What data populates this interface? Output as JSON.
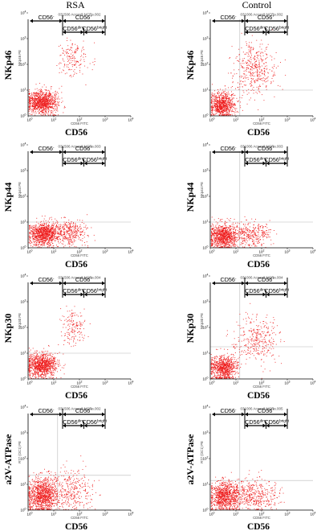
{
  "figure": {
    "columns": [
      "RSA",
      "Control"
    ],
    "x_marker": "CD56",
    "x_channel": "CD56 FITC",
    "gate_labels": {
      "neg": "CD56",
      "neg_sup": "-",
      "pos": "CD56",
      "pos_sup": "+",
      "dim": "CD56",
      "dim_sup": "dim",
      "bright": "CD56",
      "bright_sup": "bright"
    },
    "decades": [
      "0",
      "1",
      "2",
      "3",
      "4"
    ],
    "colors": {
      "dots": "#ee1c1c",
      "axis": "#000000",
      "quadrant": "#b8b8b8",
      "panel_bg": "#ffffff"
    }
  },
  "chart_data": [
    {
      "type": "scatter",
      "column": "RSA",
      "row": 1,
      "ylabel": "NKp46",
      "xlabel": "CD56",
      "y_channel": "NKp46 PE",
      "x_channel": "CD56 FITC",
      "sample": "031506 Accardi NCRs.002",
      "x_scale": "log",
      "y_scale": "log",
      "xlim": [
        1,
        10000
      ],
      "ylim": [
        1,
        10000
      ],
      "quadrant_lines": null,
      "populations": [
        {
          "name": "CD56-",
          "count": 1000,
          "cx": 0.55,
          "cy": 0.55,
          "sx": 0.3,
          "sy": 0.22
        },
        {
          "name": "CD56+",
          "count": 170,
          "cx": 1.75,
          "cy": 2.25,
          "sx": 0.28,
          "sy": 0.35
        }
      ]
    },
    {
      "type": "scatter",
      "column": "Control",
      "row": 1,
      "ylabel": "NKp46",
      "xlabel": "CD56",
      "y_channel": "NKp46 PE",
      "x_channel": "CD56 FITC",
      "sample": "031006 Accardi NCRs.002",
      "x_scale": "log",
      "y_scale": "log",
      "xlim": [
        1,
        10000
      ],
      "ylim": [
        1,
        10000
      ],
      "quadrant_lines": {
        "x": 1.15,
        "y": 1.0
      },
      "populations": [
        {
          "name": "CD56-",
          "count": 800,
          "cx": 0.45,
          "cy": 0.45,
          "sx": 0.24,
          "sy": 0.25
        },
        {
          "name": "CD56+",
          "count": 420,
          "cx": 1.75,
          "cy": 1.85,
          "sx": 0.4,
          "sy": 0.55
        }
      ]
    },
    {
      "type": "scatter",
      "column": "RSA",
      "row": 2,
      "ylabel": "NKp44",
      "xlabel": "CD56",
      "y_channel": "NKp44 PE",
      "x_channel": "CD56 FITC",
      "sample": "031506 Accardi NCRs.003",
      "x_scale": "log",
      "y_scale": "log",
      "xlim": [
        1,
        10000
      ],
      "ylim": [
        1,
        10000
      ],
      "quadrant_lines": {
        "x": null,
        "y": 1.0
      },
      "populations": [
        {
          "name": "CD56-",
          "count": 1000,
          "cx": 0.6,
          "cy": 0.55,
          "sx": 0.3,
          "sy": 0.22
        },
        {
          "name": "CD56+",
          "count": 350,
          "cx": 1.6,
          "cy": 0.6,
          "sx": 0.35,
          "sy": 0.25
        }
      ]
    },
    {
      "type": "scatter",
      "column": "Control",
      "row": 2,
      "ylabel": "NKp44",
      "xlabel": "CD56",
      "y_channel": "NKp44 PE",
      "x_channel": "CD56 FITC",
      "sample": "031006 Accardi NCRs.003",
      "x_scale": "log",
      "y_scale": "log",
      "xlim": [
        1,
        10000
      ],
      "ylim": [
        1,
        10000
      ],
      "quadrant_lines": {
        "x": 1.15,
        "y": 1.0
      },
      "populations": [
        {
          "name": "CD56-",
          "count": 900,
          "cx": 0.5,
          "cy": 0.45,
          "sx": 0.27,
          "sy": 0.24
        },
        {
          "name": "CD56+",
          "count": 350,
          "cx": 1.6,
          "cy": 0.55,
          "sx": 0.4,
          "sy": 0.25
        }
      ]
    },
    {
      "type": "scatter",
      "column": "RSA",
      "row": 3,
      "ylabel": "NKp30",
      "xlabel": "CD56",
      "y_channel": "NKp30 PE",
      "x_channel": "CD56 FITC",
      "sample": "031506 Accardi NCRs.004",
      "x_scale": "log",
      "y_scale": "log",
      "xlim": [
        1,
        10000
      ],
      "ylim": [
        1,
        10000
      ],
      "quadrant_lines": {
        "x": null,
        "y": 1.0
      },
      "populations": [
        {
          "name": "CD56-",
          "count": 1000,
          "cx": 0.55,
          "cy": 0.55,
          "sx": 0.3,
          "sy": 0.24
        },
        {
          "name": "CD56+",
          "count": 160,
          "cx": 1.75,
          "cy": 2.05,
          "sx": 0.25,
          "sy": 0.3
        }
      ]
    },
    {
      "type": "scatter",
      "column": "Control",
      "row": 3,
      "ylabel": "NKp30",
      "xlabel": "CD56",
      "y_channel": "NKp30 PE",
      "x_channel": "CD56 FITC",
      "sample": "031006 Accardi NCRs.004",
      "x_scale": "log",
      "y_scale": "log",
      "xlim": [
        1,
        10000
      ],
      "ylim": [
        1,
        10000
      ],
      "quadrant_lines": {
        "x": 1.15,
        "y": 1.25
      },
      "populations": [
        {
          "name": "CD56-",
          "count": 800,
          "cx": 0.5,
          "cy": 0.45,
          "sx": 0.25,
          "sy": 0.24
        },
        {
          "name": "CD56+",
          "count": 340,
          "cx": 1.75,
          "cy": 1.55,
          "sx": 0.4,
          "sy": 0.45
        }
      ]
    },
    {
      "type": "scatter",
      "column": "RSA",
      "row": 4,
      "ylabel": "a2V-ATPase",
      "xlabel": "CD56",
      "y_channel": "R77 (OC1) PE",
      "x_channel": "CD56 FITC",
      "sample": "031506 Accardi NCRs.002",
      "x_scale": "log",
      "y_scale": "log",
      "xlim": [
        1,
        10000
      ],
      "ylim": [
        1,
        10000
      ],
      "quadrant_lines": {
        "x": 1.15,
        "y": 1.35
      },
      "populations": [
        {
          "name": "CD56-",
          "count": 1050,
          "cx": 0.55,
          "cy": 0.6,
          "sx": 0.3,
          "sy": 0.32
        },
        {
          "name": "CD56+",
          "count": 350,
          "cx": 1.65,
          "cy": 0.75,
          "sx": 0.45,
          "sy": 0.4
        }
      ]
    },
    {
      "type": "scatter",
      "column": "Control",
      "row": 4,
      "ylabel": "a2V-ATPase",
      "xlabel": "CD56",
      "y_channel": "R77 (OC1) PE",
      "x_channel": "CD56 FITC",
      "sample": "031006 Accardi NCRs.005",
      "x_scale": "log",
      "y_scale": "log",
      "xlim": [
        1,
        10000
      ],
      "ylim": [
        1,
        10000
      ],
      "quadrant_lines": {
        "x": 1.15,
        "y": 1.15
      },
      "populations": [
        {
          "name": "CD56-",
          "count": 900,
          "cx": 0.55,
          "cy": 0.55,
          "sx": 0.3,
          "sy": 0.28
        },
        {
          "name": "CD56+",
          "count": 450,
          "cx": 1.7,
          "cy": 0.6,
          "sx": 0.5,
          "sy": 0.32
        }
      ]
    }
  ]
}
